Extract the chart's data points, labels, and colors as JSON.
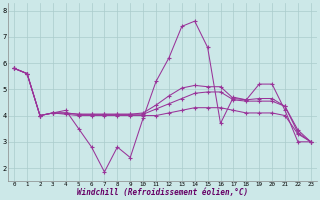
{
  "xlabel": "Windchill (Refroidissement éolien,°C)",
  "background_color": "#cce8e8",
  "grid_color": "#aacccc",
  "line_color": "#993399",
  "x_ticks": [
    0,
    1,
    2,
    3,
    4,
    5,
    6,
    7,
    8,
    9,
    10,
    11,
    12,
    13,
    14,
    15,
    16,
    17,
    18,
    19,
    20,
    21,
    22,
    23
  ],
  "y_ticks": [
    2,
    3,
    4,
    5,
    6,
    7,
    8
  ],
  "ylim": [
    1.5,
    8.3
  ],
  "xlim": [
    -0.5,
    23.5
  ],
  "series": [
    {
      "x": [
        0,
        1,
        2,
        3,
        4,
        5,
        6,
        7,
        8,
        9,
        10,
        11,
        12,
        13,
        14,
        15,
        16,
        17,
        18,
        19,
        20,
        21,
        22,
        23
      ],
      "y": [
        5.8,
        5.6,
        4.0,
        4.1,
        4.2,
        3.5,
        2.8,
        1.85,
        2.8,
        2.4,
        3.9,
        5.3,
        6.2,
        7.4,
        7.6,
        6.6,
        3.7,
        4.7,
        4.6,
        5.2,
        5.2,
        4.2,
        3.0,
        3.0
      ]
    },
    {
      "x": [
        0,
        1,
        2,
        3,
        4,
        5,
        6,
        7,
        8,
        9,
        10,
        11,
        12,
        13,
        14,
        15,
        16,
        17,
        18,
        19,
        20,
        21,
        22,
        23
      ],
      "y": [
        5.8,
        5.6,
        4.0,
        4.1,
        4.1,
        4.05,
        4.05,
        4.05,
        4.05,
        4.05,
        4.1,
        4.4,
        4.75,
        5.05,
        5.15,
        5.1,
        5.1,
        4.65,
        4.6,
        4.65,
        4.65,
        4.35,
        3.45,
        3.0
      ]
    },
    {
      "x": [
        0,
        1,
        2,
        3,
        4,
        5,
        6,
        7,
        8,
        9,
        10,
        11,
        12,
        13,
        14,
        15,
        16,
        17,
        18,
        19,
        20,
        21,
        22,
        23
      ],
      "y": [
        5.8,
        5.6,
        4.0,
        4.1,
        4.1,
        4.05,
        4.05,
        4.05,
        4.05,
        4.05,
        4.05,
        4.25,
        4.45,
        4.65,
        4.85,
        4.9,
        4.9,
        4.6,
        4.55,
        4.55,
        4.55,
        4.35,
        3.35,
        3.0
      ]
    },
    {
      "x": [
        0,
        1,
        2,
        3,
        4,
        5,
        6,
        7,
        8,
        9,
        10,
        11,
        12,
        13,
        14,
        15,
        16,
        17,
        18,
        19,
        20,
        21,
        22,
        23
      ],
      "y": [
        5.8,
        5.6,
        4.0,
        4.1,
        4.05,
        4.0,
        4.0,
        4.0,
        4.0,
        4.0,
        4.0,
        4.0,
        4.1,
        4.2,
        4.3,
        4.3,
        4.3,
        4.2,
        4.1,
        4.1,
        4.1,
        4.0,
        3.3,
        3.0
      ]
    }
  ]
}
